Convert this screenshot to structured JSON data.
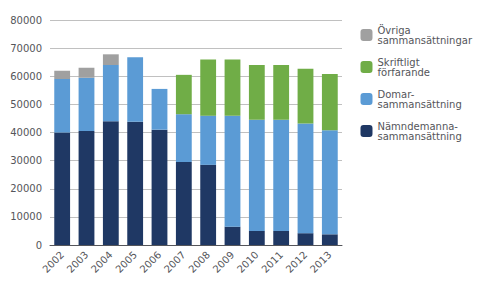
{
  "chart_data": {
    "type": "bar",
    "stacked": true,
    "categories": [
      "2002",
      "2003",
      "2004",
      "2005",
      "2006",
      "2007",
      "2008",
      "2009",
      "2010",
      "2011",
      "2012",
      "2013"
    ],
    "series": [
      {
        "name": "Nämndemanna-\nsammansättning",
        "color": "#1F3864",
        "values": [
          40000,
          40500,
          44000,
          43800,
          41000,
          29500,
          28500,
          6500,
          5000,
          5000,
          4200,
          3800
        ]
      },
      {
        "name": "Domar-\nsammansättning",
        "color": "#5B9BD5",
        "values": [
          19000,
          19000,
          20000,
          23000,
          14500,
          17000,
          17500,
          39500,
          39500,
          39500,
          39000,
          37000
        ]
      },
      {
        "name": "Skriftligt\nförfarande",
        "color": "#70AD47",
        "values": [
          0,
          0,
          0,
          0,
          0,
          14000,
          20000,
          20000,
          19500,
          19500,
          19500,
          20000
        ]
      },
      {
        "name": "Övriga\nsammansättningar",
        "color": "#A0A0A0",
        "values": [
          3000,
          3500,
          3800,
          0,
          0,
          0,
          0,
          0,
          0,
          0,
          0,
          0
        ]
      }
    ],
    "ylim": [
      0,
      80000
    ],
    "yticks": [
      0,
      10000,
      20000,
      30000,
      40000,
      50000,
      60000,
      70000,
      80000
    ],
    "grid": true,
    "legend": "right"
  }
}
